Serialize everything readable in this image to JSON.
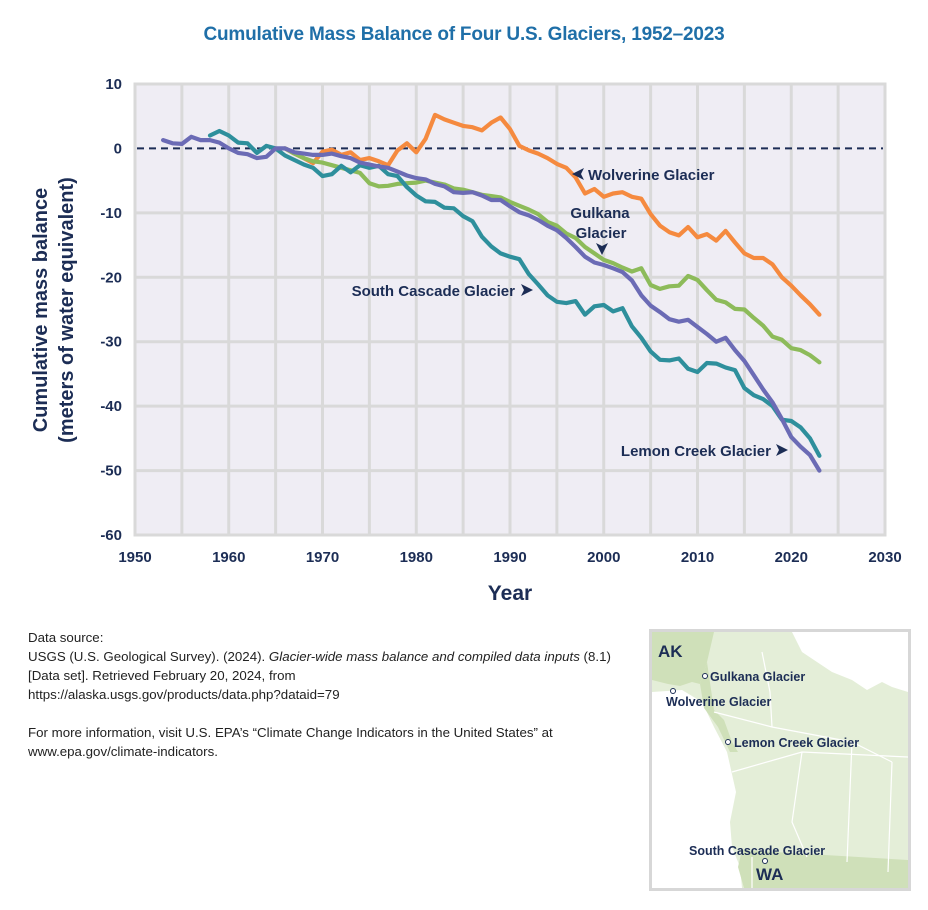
{
  "chart_data": {
    "type": "line",
    "title": "Cumulative Mass Balance of Four U.S. Glaciers, 1952–2023",
    "xlabel": "Year",
    "ylabel": "Cumulative mass balance",
    "ylabel_units": "(meters of water equivalent)",
    "xlim": [
      1950,
      2030
    ],
    "ylim": [
      -60,
      10
    ],
    "xticks": [
      1950,
      1960,
      1970,
      1980,
      1990,
      2000,
      2010,
      2020,
      2030
    ],
    "yticks": [
      10,
      0,
      -10,
      -20,
      -30,
      -40,
      -50,
      -60
    ],
    "xtick_labels": [
      "1950",
      "1960",
      "1970",
      "1980",
      "1990",
      "2000",
      "2010",
      "2020",
      "2030"
    ],
    "ytick_labels": [
      "10",
      "0",
      "-10",
      "-20",
      "-30",
      "-40",
      "-50",
      "-60"
    ],
    "grid": true,
    "reference_line": {
      "y": 0,
      "style": "dashed"
    },
    "series": [
      {
        "name": "Wolverine Glacier",
        "label": "Wolverine Glacier",
        "color": "#f58a3f",
        "x": [
          1966,
          1967,
          1968,
          1969,
          1970,
          1971,
          1972,
          1973,
          1974,
          1975,
          1976,
          1977,
          1978,
          1979,
          1980,
          1981,
          1982,
          1983,
          1984,
          1985,
          1986,
          1987,
          1988,
          1989,
          1990,
          1991,
          1992,
          1993,
          1994,
          1995,
          1996,
          1997,
          1998,
          1999,
          2000,
          2001,
          2002,
          2003,
          2004,
          2005,
          2006,
          2007,
          2008,
          2009,
          2010,
          2011,
          2012,
          2013,
          2014,
          2015,
          2016,
          2017,
          2018,
          2019,
          2020,
          2021,
          2022,
          2023
        ],
        "values": [
          0,
          -0.8,
          -1.5,
          -2.3,
          -0.5,
          -0.2,
          -1.0,
          -0.6,
          -1.8,
          -1.5,
          -2.0,
          -2.6,
          -0.3,
          0.8,
          -0.6,
          1.5,
          5.2,
          4.5,
          4.0,
          3.5,
          3.3,
          2.8,
          4.0,
          4.8,
          3.0,
          0.4,
          -0.3,
          -0.8,
          -1.5,
          -2.4,
          -3.0,
          -4.5,
          -7.0,
          -6.3,
          -7.5,
          -7.0,
          -6.8,
          -7.5,
          -7.8,
          -10.2,
          -12.0,
          -13.0,
          -13.5,
          -12.2,
          -13.8,
          -13.3,
          -14.3,
          -12.8,
          -14.6,
          -16.3,
          -17.0,
          -17.0,
          -18.0,
          -20.0,
          -21.3,
          -22.8,
          -24.2,
          -25.8
        ]
      },
      {
        "name": "Gulkana Glacier",
        "label": "Gulkana Glacier",
        "color": "#8dbb5a",
        "x": [
          1966,
          1967,
          1968,
          1969,
          1970,
          1971,
          1972,
          1973,
          1974,
          1975,
          1976,
          1977,
          1978,
          1979,
          1980,
          1981,
          1982,
          1983,
          1984,
          1985,
          1986,
          1987,
          1988,
          1989,
          1990,
          1991,
          1992,
          1993,
          1994,
          1995,
          1996,
          1997,
          1998,
          1999,
          2000,
          2001,
          2002,
          2003,
          2004,
          2005,
          2006,
          2007,
          2008,
          2009,
          2010,
          2011,
          2012,
          2013,
          2014,
          2015,
          2016,
          2017,
          2018,
          2019,
          2020,
          2021,
          2022,
          2023
        ],
        "values": [
          0,
          -0.8,
          -1.5,
          -2.0,
          -2.2,
          -2.6,
          -3.0,
          -3.4,
          -3.8,
          -5.4,
          -5.9,
          -5.8,
          -5.5,
          -5.4,
          -5.3,
          -5.0,
          -5.3,
          -5.6,
          -6.2,
          -6.4,
          -6.8,
          -7.2,
          -7.4,
          -7.6,
          -8.3,
          -8.9,
          -9.5,
          -10.2,
          -11.4,
          -12.0,
          -13.2,
          -13.9,
          -15.3,
          -16.3,
          -17.3,
          -17.8,
          -18.5,
          -19.1,
          -18.6,
          -21.2,
          -21.8,
          -21.4,
          -21.3,
          -19.8,
          -20.4,
          -22.0,
          -23.5,
          -23.9,
          -24.9,
          -25.0,
          -26.3,
          -27.5,
          -29.2,
          -29.7,
          -31.0,
          -31.3,
          -32.1,
          -33.2
        ]
      },
      {
        "name": "Lemon Creek Glacier",
        "label": "Lemon Creek Glacier",
        "color": "#6b6bb5",
        "x": [
          1953,
          1954,
          1955,
          1956,
          1957,
          1958,
          1959,
          1960,
          1961,
          1962,
          1963,
          1964,
          1965,
          1966,
          1967,
          1968,
          1969,
          1970,
          1971,
          1972,
          1973,
          1974,
          1975,
          1976,
          1977,
          1978,
          1979,
          1980,
          1981,
          1982,
          1983,
          1984,
          1985,
          1986,
          1987,
          1988,
          1989,
          1990,
          1991,
          1992,
          1993,
          1994,
          1995,
          1996,
          1997,
          1998,
          1999,
          2000,
          2001,
          2002,
          2003,
          2004,
          2005,
          2006,
          2007,
          2008,
          2009,
          2010,
          2011,
          2012,
          2013,
          2014,
          2015,
          2016,
          2017,
          2018,
          2019,
          2020,
          2021,
          2022,
          2023
        ],
        "values": [
          1.3,
          0.8,
          0.7,
          1.8,
          1.3,
          1.3,
          0.9,
          0.0,
          -0.7,
          -0.9,
          -1.5,
          -1.3,
          0.0,
          0.0,
          -0.6,
          -0.8,
          -1.0,
          -1.0,
          -0.8,
          -1.2,
          -1.5,
          -2.2,
          -2.5,
          -2.8,
          -3.0,
          -3.6,
          -4.2,
          -4.6,
          -4.8,
          -5.5,
          -5.9,
          -6.8,
          -6.9,
          -6.8,
          -7.3,
          -8.0,
          -8.0,
          -9.0,
          -9.9,
          -10.4,
          -11.1,
          -12.0,
          -12.7,
          -13.9,
          -15.3,
          -16.8,
          -17.7,
          -18.1,
          -18.6,
          -19.2,
          -20.5,
          -22.8,
          -24.4,
          -25.4,
          -26.5,
          -26.9,
          -26.6,
          -27.7,
          -28.8,
          -30.0,
          -29.4,
          -31.3,
          -33.0,
          -35.2,
          -37.4,
          -39.4,
          -42.0,
          -44.8,
          -46.3,
          -47.6,
          -50.0
        ]
      },
      {
        "name": "South Cascade Glacier",
        "label": "South Cascade Glacier",
        "color": "#2e8f9c",
        "x": [
          1958,
          1959,
          1960,
          1961,
          1962,
          1963,
          1964,
          1965,
          1966,
          1967,
          1968,
          1969,
          1970,
          1971,
          1972,
          1973,
          1974,
          1975,
          1976,
          1977,
          1978,
          1979,
          1980,
          1981,
          1982,
          1983,
          1984,
          1985,
          1986,
          1987,
          1988,
          1989,
          1990,
          1991,
          1992,
          1993,
          1994,
          1995,
          1996,
          1997,
          1998,
          1999,
          2000,
          2001,
          2002,
          2003,
          2004,
          2005,
          2006,
          2007,
          2008,
          2009,
          2010,
          2011,
          2012,
          2013,
          2014,
          2015,
          2016,
          2017,
          2018,
          2019,
          2020,
          2021,
          2022,
          2023
        ],
        "values": [
          2.0,
          2.7,
          2.0,
          0.9,
          0.8,
          -0.7,
          0.4,
          0.0,
          -1.1,
          -1.8,
          -2.5,
          -3.0,
          -4.3,
          -4.0,
          -2.7,
          -3.7,
          -2.6,
          -3.0,
          -2.7,
          -4.0,
          -4.3,
          -6.0,
          -7.3,
          -8.2,
          -8.3,
          -9.2,
          -9.3,
          -10.5,
          -11.3,
          -13.7,
          -15.2,
          -16.3,
          -16.8,
          -17.2,
          -19.5,
          -21.1,
          -22.8,
          -23.8,
          -24.0,
          -23.7,
          -25.8,
          -24.5,
          -24.3,
          -25.3,
          -24.8,
          -27.6,
          -29.4,
          -31.5,
          -32.8,
          -32.9,
          -32.6,
          -34.2,
          -34.7,
          -33.3,
          -33.4,
          -34.0,
          -34.4,
          -37.2,
          -38.3,
          -38.9,
          -40.0,
          -42.1,
          -42.3,
          -43.3,
          -45.0,
          -47.7
        ]
      }
    ],
    "annotations": [
      {
        "text": "Wolverine Glacier",
        "arrow": "left",
        "series": "Wolverine Glacier"
      },
      {
        "text": "Gulkana Glacier",
        "arrow": "down",
        "series": "Gulkana Glacier"
      },
      {
        "text": "South Cascade Glacier",
        "arrow": "right",
        "series": "South Cascade Glacier"
      },
      {
        "text": "Lemon Creek Glacier",
        "arrow": "right",
        "series": "Lemon Creek Glacier"
      }
    ]
  },
  "labels": {
    "title": "Cumulative Mass Balance of Four U.S. Glaciers, 1952–2023",
    "ylabel_line1": "Cumulative mass balance",
    "ylabel_line2": "(meters of water equivalent)",
    "xlabel": "Year",
    "annot_wolverine": "Wolverine Glacier",
    "annot_gulkana_1": "Gulkana",
    "annot_gulkana_2": "Glacier",
    "annot_south_cascade": "South Cascade Glacier",
    "annot_lemon_creek": "Lemon Creek Glacier"
  },
  "source": {
    "heading": "Data source:",
    "citation_prefix": "USGS (U.S. Geological Survey). (2024). ",
    "citation_title": "Glacier-wide mass balance and compiled data inputs",
    "citation_suffix": " (8.1) [Data set]. Retrieved February 20, 2024, from",
    "citation_url": "https://alaska.usgs.gov/products/data.php?dataid=79",
    "more_info_line1": "For more information, visit U.S. EPA’s “Climate Change Indicators in the United States” at",
    "more_info_line2": "www.epa.gov/climate-indicators."
  },
  "map": {
    "state_ak": "AK",
    "state_wa": "WA",
    "locations": [
      {
        "name": "Gulkana Glacier"
      },
      {
        "name": "Wolverine Glacier"
      },
      {
        "name": "Lemon Creek Glacier"
      },
      {
        "name": "South Cascade Glacier"
      }
    ]
  },
  "colors": {
    "title": "#1f6fa8",
    "axis_text": "#1c2d55",
    "plot_bg": "#efedf4",
    "grid": "#d9d9d9",
    "map_land": "#e4eed8",
    "map_us": "#cfe0b9"
  }
}
